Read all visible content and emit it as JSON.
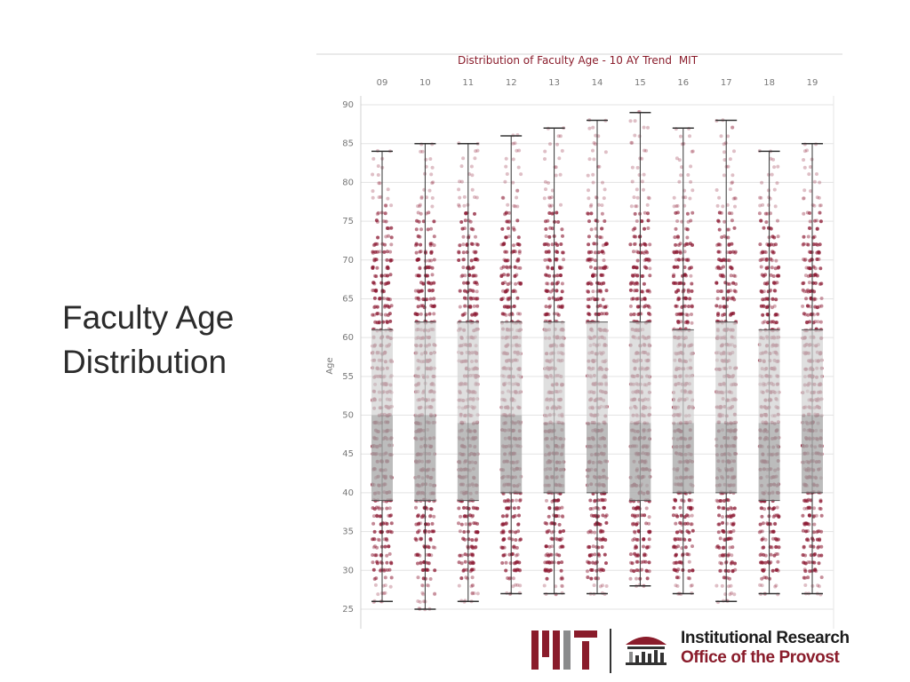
{
  "slide": {
    "title_line1": "Faculty Age",
    "title_line2": "Distribution"
  },
  "footer": {
    "logo_text": "MIT",
    "org_line1": "Institutional Research",
    "org_line2": "Office of the Provost"
  },
  "colors": {
    "accent": "#8a1c2b",
    "dot": "#8c1a33",
    "box_upper": "#d3d3d3",
    "box_lower": "#a9a9a9",
    "whisker": "#333333",
    "grid": "#e3e3e3",
    "logo_gray": "#8a8b8c"
  },
  "chart_data": {
    "type": "boxplot",
    "title": "Distribution of Faculty Age - 10 AY Trend",
    "title_suffix": "MIT",
    "xlabel": "",
    "ylabel": "Age",
    "categories": [
      "09",
      "10",
      "11",
      "12",
      "13",
      "14",
      "15",
      "16",
      "17",
      "18",
      "19"
    ],
    "x_axis_position": "top",
    "ylim": [
      24,
      91
    ],
    "yticks": [
      25,
      30,
      35,
      40,
      45,
      50,
      55,
      60,
      65,
      70,
      75,
      80,
      85,
      90
    ],
    "grid": true,
    "series": [
      {
        "category": "09",
        "min": 26,
        "q1": 39,
        "median": 50,
        "q3": 61,
        "max": 84
      },
      {
        "category": "10",
        "min": 25,
        "q1": 39,
        "median": 50,
        "q3": 62,
        "max": 85
      },
      {
        "category": "11",
        "min": 26,
        "q1": 39,
        "median": 49,
        "q3": 62,
        "max": 85
      },
      {
        "category": "12",
        "min": 27,
        "q1": 40,
        "median": 50,
        "q3": 62,
        "max": 86
      },
      {
        "category": "13",
        "min": 27,
        "q1": 40,
        "median": 49,
        "q3": 62,
        "max": 87
      },
      {
        "category": "14",
        "min": 27,
        "q1": 40,
        "median": 49,
        "q3": 62,
        "max": 88
      },
      {
        "category": "15",
        "min": 28,
        "q1": 39,
        "median": 49,
        "q3": 62,
        "max": 89
      },
      {
        "category": "16",
        "min": 27,
        "q1": 40,
        "median": 49,
        "q3": 61,
        "max": 87
      },
      {
        "category": "17",
        "min": 26,
        "q1": 40,
        "median": 49,
        "q3": 62,
        "max": 88
      },
      {
        "category": "18",
        "min": 27,
        "q1": 39,
        "median": 49,
        "q3": 61,
        "max": 84
      },
      {
        "category": "19",
        "min": 27,
        "q1": 40,
        "median": 50,
        "q3": 61,
        "max": 85
      }
    ],
    "points_per_age": "jittered dots, one per faculty member, at whole-year ages from min to max"
  }
}
